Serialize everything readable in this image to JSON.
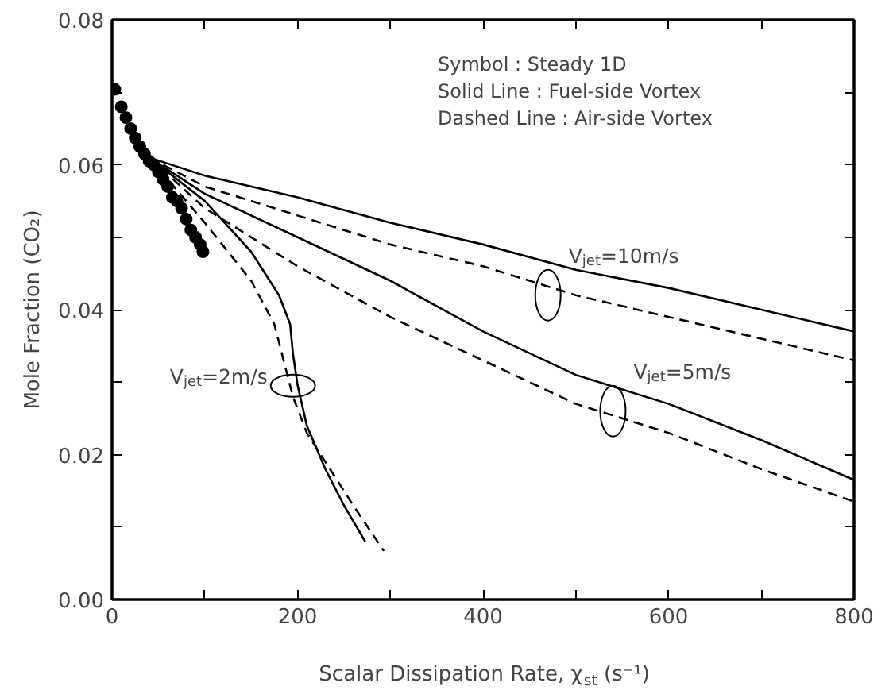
{
  "chart_data": {
    "type": "line",
    "xlabel": "Scalar Dissipation Rate, χ$_{st}$ (s⁻¹)",
    "ylabel": "Mole Fraction (CO₂)",
    "xlim": [
      0,
      800
    ],
    "ylim": [
      0,
      0.08
    ],
    "xticks": [
      0,
      {
        "value": 100,
        "label": null
      },
      200,
      {
        "value": 300,
        "label": null
      },
      400,
      {
        "value": 500,
        "label": null
      },
      600,
      {
        "value": 700,
        "label": null
      },
      800
    ],
    "yticks": [
      {
        "value": 0,
        "label": "0.00"
      },
      {
        "value": 0.01,
        "label": null
      },
      {
        "value": 0.02,
        "label": "0.02"
      },
      {
        "value": 0.03,
        "label": null
      },
      {
        "value": 0.04,
        "label": "0.04"
      },
      {
        "value": 0.05,
        "label": null
      },
      {
        "value": 0.06,
        "label": "0.06"
      },
      {
        "value": 0.07,
        "label": null
      },
      {
        "value": 0.08,
        "label": "0.08"
      }
    ],
    "grid": false,
    "series": [
      {
        "type": "scatter",
        "marker": "circle",
        "color": "#000000",
        "x": [
          3,
          10,
          15,
          20,
          25,
          30,
          35,
          40,
          45,
          50,
          55,
          60,
          65,
          70,
          75,
          80,
          85,
          90,
          95,
          98
        ],
        "values": [
          0.0704,
          0.068,
          0.0665,
          0.065,
          0.0637,
          0.0625,
          0.0615,
          0.0605,
          0.06,
          0.059,
          0.058,
          0.057,
          0.0555,
          0.055,
          0.054,
          0.0525,
          0.051,
          0.05,
          0.049,
          0.048
        ]
      },
      {
        "line_style": "solid",
        "color": "#000000",
        "x": [
          40,
          100,
          200,
          300,
          400,
          500,
          600,
          700,
          800
        ],
        "values": [
          0.061,
          0.0585,
          0.0555,
          0.052,
          0.049,
          0.0455,
          0.043,
          0.04,
          0.037
        ]
      },
      {
        "line_style": "dashed",
        "color": "#000000",
        "x": [
          40,
          100,
          200,
          300,
          400,
          500,
          600,
          700,
          800
        ],
        "values": [
          0.061,
          0.057,
          0.053,
          0.049,
          0.046,
          0.042,
          0.039,
          0.036,
          0.033
        ]
      },
      {
        "line_style": "solid",
        "color": "#000000",
        "x": [
          40,
          100,
          200,
          300,
          400,
          500,
          600,
          700,
          800
        ],
        "values": [
          0.061,
          0.056,
          0.05,
          0.044,
          0.037,
          0.031,
          0.027,
          0.022,
          0.0165
        ]
      },
      {
        "line_style": "dashed",
        "color": "#000000",
        "x": [
          40,
          100,
          200,
          300,
          400,
          500,
          600,
          700,
          800
        ],
        "values": [
          0.061,
          0.054,
          0.046,
          0.039,
          0.033,
          0.027,
          0.023,
          0.018,
          0.0135
        ]
      },
      {
        "line_style": "solid",
        "color": "#000000",
        "x": [
          40,
          100,
          150,
          180,
          192,
          195,
          200,
          210,
          230,
          250,
          273
        ],
        "values": [
          0.061,
          0.055,
          0.048,
          0.042,
          0.038,
          0.034,
          0.0296,
          0.024,
          0.018,
          0.013,
          0.008
        ]
      },
      {
        "line_style": "dashed",
        "color": "#000000",
        "x": [
          40,
          100,
          150,
          175,
          185,
          195,
          210,
          230,
          260,
          293
        ],
        "values": [
          0.061,
          0.052,
          0.044,
          0.038,
          0.033,
          0.028,
          0.023,
          0.019,
          0.013,
          0.0067
        ]
      }
    ],
    "annotations": [
      "Symbol        : Steady 1D",
      "Solid Line    : Fuel-side Vortex",
      "Dashed Line : Air-side Vortex",
      {
        "text": "V$_{jet}$=10m/s",
        "x": 470,
        "y": 0.042
      },
      {
        "text": "V$_{jet}$=5m/s",
        "x": 540,
        "y": 0.026
      },
      {
        "text": "V$_{jet}$=2m/s",
        "x": 195,
        "y": 0.0295
      }
    ]
  }
}
